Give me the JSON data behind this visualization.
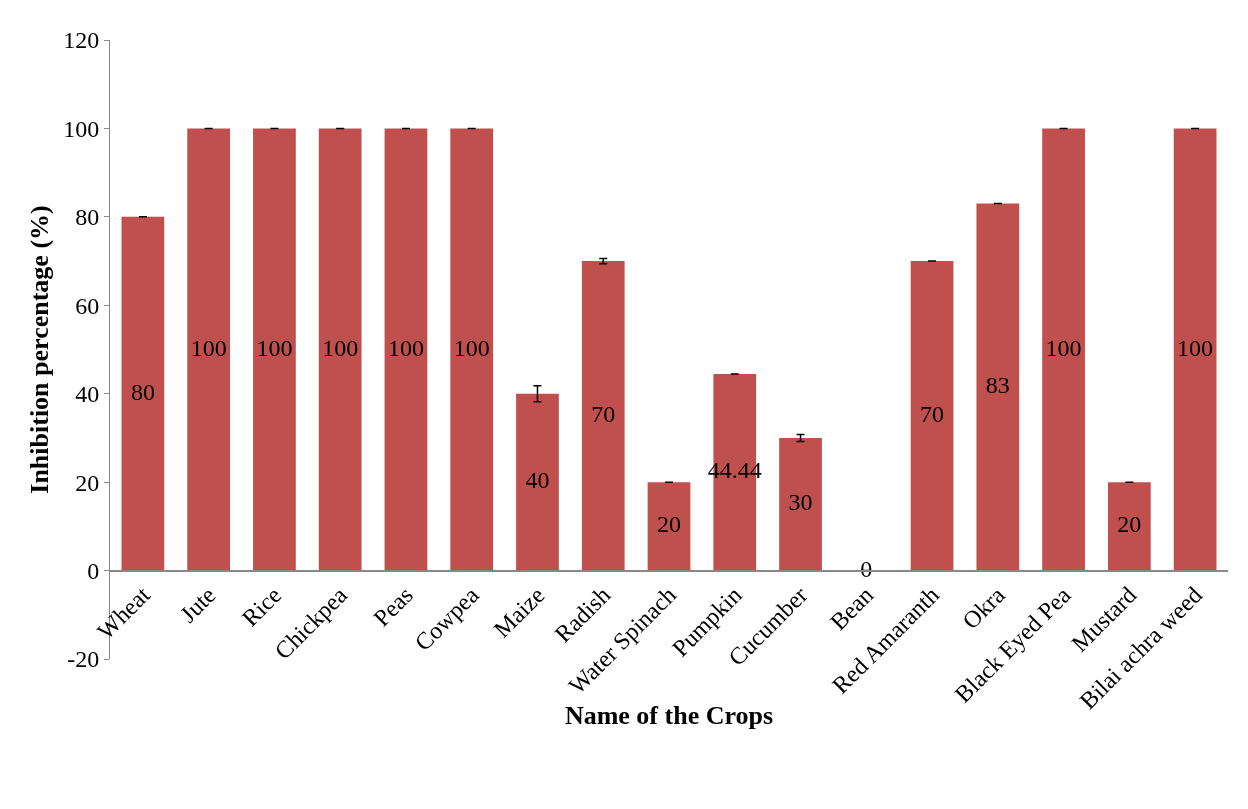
{
  "chart_data": {
    "type": "bar",
    "xlabel": "Name of the Crops",
    "ylabel": "Inhibition percentage (%)",
    "categories": [
      "Wheat",
      "Jute",
      "Rice",
      "Chickpea",
      "Peas",
      "Cowpea",
      "Maize",
      "Radish",
      "Water Spinach",
      "Pumpkin",
      "Cucumber",
      "Bean",
      "Red Amaranth",
      "Okra",
      "Black Eyed Pea",
      "Mustard",
      "Bilai achra weed"
    ],
    "values": [
      80,
      100,
      100,
      100,
      100,
      100,
      40,
      70,
      20,
      44.44,
      30,
      0,
      70,
      83,
      100,
      20,
      100
    ],
    "errors": [
      0,
      0,
      0,
      0,
      0,
      0,
      1.8,
      0.6,
      0,
      0,
      0.8,
      0,
      0,
      0,
      0,
      0,
      0
    ],
    "color": "#c0504d",
    "data_labels": true,
    "grid": false,
    "legend": false,
    "ylim": [
      -20,
      120
    ],
    "yticks": [
      -20,
      0,
      20,
      40,
      60,
      80,
      100,
      120
    ]
  }
}
